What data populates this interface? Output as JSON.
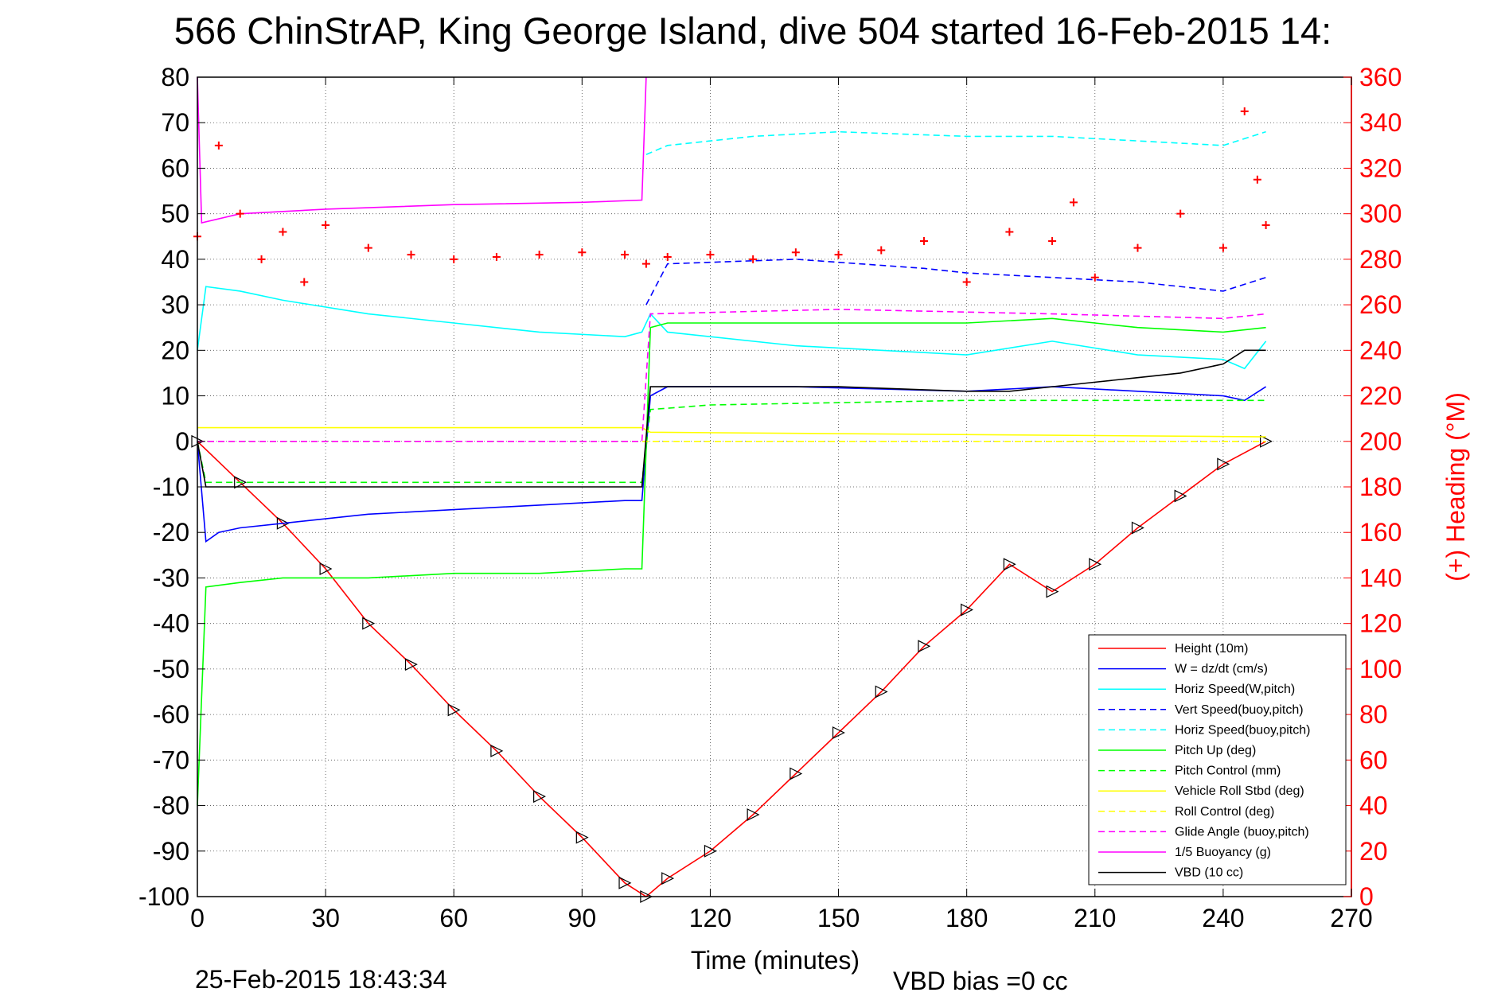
{
  "figure": {
    "title": "566 ChinStrAP, King George Island, dive 504 started 16-Feb-2015 14:",
    "footer_left": "25-Feb-2015 18:43:34",
    "footer_right": "VBD bias =0 cc"
  },
  "chart_data": {
    "type": "line",
    "title": "566 ChinStrAP, King George Island, dive 504 started 16-Feb-2015 14:",
    "xlabel": "Time (minutes)",
    "ylabel": "",
    "y2label": "(+) Heading (°M)",
    "xlim": [
      0,
      270
    ],
    "ylim": [
      -100,
      80
    ],
    "y2lim": [
      0,
      360
    ],
    "xticks": [
      "0",
      "30",
      "60",
      "90",
      "120",
      "150",
      "180",
      "210",
      "240",
      "270"
    ],
    "yticks": [
      "80",
      "70",
      "60",
      "50",
      "40",
      "30",
      "20",
      "10",
      "0",
      "-10",
      "-20",
      "-30",
      "-40",
      "-50",
      "-60",
      "-70",
      "-80",
      "-90",
      "-100"
    ],
    "y2ticks": [
      "360",
      "340",
      "320",
      "300",
      "280",
      "260",
      "240",
      "220",
      "200",
      "180",
      "160",
      "140",
      "120",
      "100",
      "80",
      "60",
      "40",
      "20",
      "0"
    ],
    "grid": true,
    "legend_position": "bottom-right",
    "colors": {
      "height": "#ff0000",
      "w": "#0000ff",
      "horiz_speed": "#00ffff",
      "vert_speed_buoy": "#0000ff",
      "horiz_speed_buoy": "#00ffff",
      "pitch_up": "#00ff00",
      "pitch_control": "#00ff00",
      "roll": "#ffff00",
      "roll_control": "#ffff00",
      "glide_angle": "#ff00ff",
      "buoyancy": "#ff00ff",
      "vbd": "#000000",
      "heading": "#ff0000"
    },
    "series": [
      {
        "name": "Height (10m)",
        "style": "solid",
        "color": "#ff0000",
        "x": [
          0,
          10,
          20,
          30,
          40,
          50,
          60,
          70,
          80,
          90,
          100,
          105,
          110,
          120,
          130,
          140,
          150,
          160,
          170,
          180,
          190,
          200,
          210,
          220,
          230,
          240,
          250
        ],
        "y": [
          0,
          -9,
          -18,
          -28,
          -40,
          -49,
          -59,
          -68,
          -78,
          -87,
          -97,
          -100,
          -96,
          -90,
          -82,
          -73,
          -64,
          -55,
          -45,
          -37,
          -27,
          -33,
          -27,
          -19,
          -12,
          -5,
          0
        ]
      },
      {
        "name": "W = dz/dt (cm/s)",
        "style": "solid",
        "color": "#0000ff",
        "x": [
          0,
          2,
          5,
          10,
          20,
          40,
          60,
          80,
          100,
          104,
          106,
          110,
          140,
          180,
          200,
          220,
          240,
          245,
          250
        ],
        "y": [
          0,
          -22,
          -20,
          -19,
          -18,
          -16,
          -15,
          -14,
          -13,
          -13,
          10,
          12,
          12,
          11,
          12,
          11,
          10,
          9,
          12
        ]
      },
      {
        "name": "Horiz Speed(W,pitch)",
        "style": "solid",
        "color": "#00ffff",
        "x": [
          0,
          2,
          10,
          20,
          40,
          60,
          80,
          100,
          104,
          106,
          110,
          140,
          180,
          200,
          220,
          240,
          245,
          250
        ],
        "y": [
          20,
          34,
          33,
          31,
          28,
          26,
          24,
          23,
          24,
          28,
          24,
          21,
          19,
          22,
          19,
          18,
          16,
          22
        ]
      },
      {
        "name": "Vert Speed(buoy,pitch)",
        "style": "dashed",
        "color": "#0000ff",
        "x": [
          105,
          110,
          140,
          170,
          180,
          200,
          220,
          240,
          250
        ],
        "y": [
          30,
          39,
          40,
          38,
          37,
          36,
          35,
          33,
          36
        ]
      },
      {
        "name": "Horiz Speed(buoy,pitch)",
        "style": "dashed",
        "color": "#00ffff",
        "x": [
          105,
          110,
          130,
          150,
          180,
          200,
          220,
          240,
          250
        ],
        "y": [
          63,
          65,
          67,
          68,
          67,
          67,
          66,
          65,
          68
        ]
      },
      {
        "name": "Pitch Up (deg)",
        "style": "solid",
        "color": "#00ff00",
        "x": [
          0,
          2,
          10,
          20,
          40,
          60,
          80,
          100,
          104,
          106,
          110,
          140,
          180,
          200,
          220,
          240,
          250
        ],
        "y": [
          -80,
          -32,
          -31,
          -30,
          -30,
          -29,
          -29,
          -28,
          -28,
          25,
          26,
          26,
          26,
          27,
          25,
          24,
          25
        ]
      },
      {
        "name": "Pitch Control (mm)",
        "style": "dashed",
        "color": "#00ff00",
        "x": [
          0,
          2,
          100,
          104,
          106,
          120,
          180,
          210,
          240,
          250
        ],
        "y": [
          0,
          -9,
          -9,
          -9,
          7,
          8,
          9,
          9,
          9,
          9
        ]
      },
      {
        "name": "Vehicle Roll Stbd (deg)",
        "style": "solid",
        "color": "#ffff00",
        "x": [
          0,
          100,
          104,
          106,
          250
        ],
        "y": [
          3,
          3,
          3,
          2,
          1
        ]
      },
      {
        "name": "Roll Control (deg)",
        "style": "dashed",
        "color": "#ffff00",
        "x": [
          0,
          250
        ],
        "y": [
          0,
          0
        ]
      },
      {
        "name": "Glide Angle (buoy,pitch)",
        "style": "dashed",
        "color": "#ff00ff",
        "x": [
          0,
          104,
          106,
          150,
          200,
          240,
          250
        ],
        "y": [
          0,
          0,
          28,
          29,
          28,
          27,
          28
        ]
      },
      {
        "name": "1/5 Buoyancy (g)",
        "style": "solid",
        "color": "#ff00ff",
        "x": [
          0,
          1,
          10,
          30,
          60,
          90,
          104,
          105
        ],
        "y": [
          80,
          48,
          50,
          51,
          52,
          52.5,
          53,
          80
        ]
      },
      {
        "name": "VBD (10 cc)",
        "style": "solid",
        "color": "#000000",
        "x": [
          0,
          2,
          100,
          104,
          106,
          150,
          180,
          190,
          200,
          210,
          220,
          230,
          240,
          245,
          250
        ],
        "y": [
          0,
          -10,
          -10,
          -10,
          12,
          12,
          11,
          11,
          12,
          13,
          14,
          15,
          17,
          20,
          20
        ]
      },
      {
        "name": "Heading",
        "style": "markers",
        "color": "#ff0000",
        "axis": "right",
        "x": [
          0,
          5,
          10,
          15,
          20,
          25,
          30,
          40,
          50,
          60,
          70,
          80,
          90,
          100,
          105,
          110,
          120,
          130,
          140,
          150,
          160,
          170,
          180,
          190,
          200,
          205,
          210,
          220,
          230,
          240,
          245,
          248,
          250
        ],
        "y": [
          290,
          330,
          300,
          280,
          292,
          270,
          295,
          285,
          282,
          280,
          281,
          282,
          283,
          282,
          278,
          281,
          282,
          280,
          283,
          282,
          284,
          288,
          270,
          292,
          288,
          305,
          272,
          285,
          300,
          285,
          345,
          315,
          295
        ]
      }
    ]
  }
}
